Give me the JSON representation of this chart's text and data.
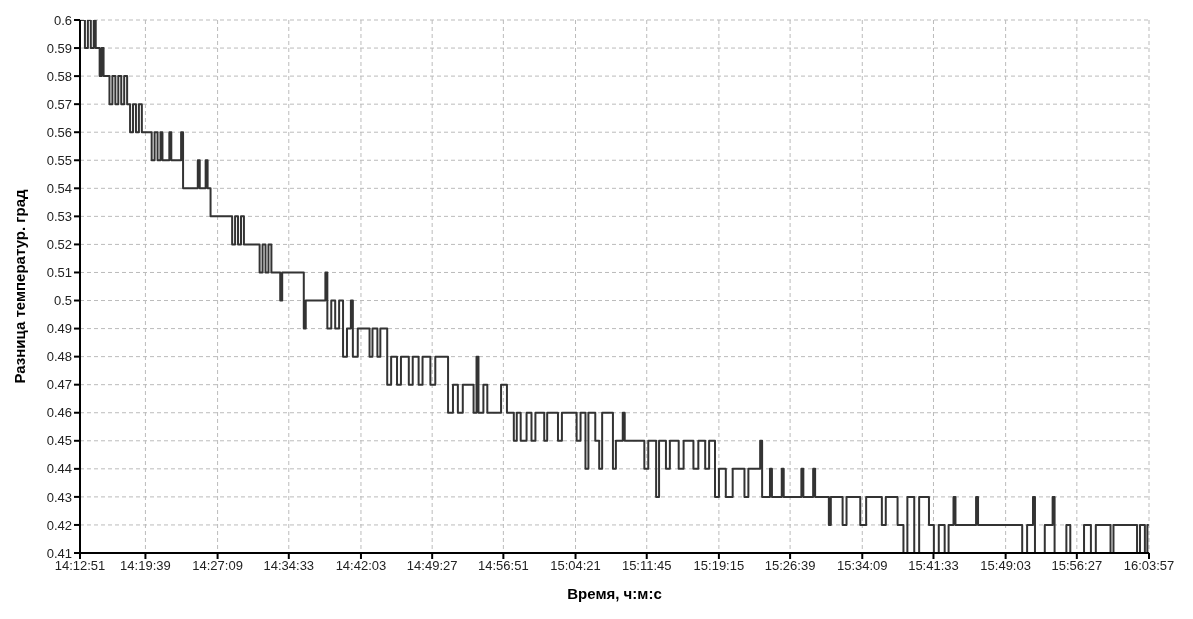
{
  "chart_data": {
    "type": "step",
    "xlabel": "Время, ч:м:с",
    "ylabel": "Разница температур. град",
    "xlim": [
      14.21417,
      16.06583
    ],
    "xticks": [
      {
        "value": 14.21417,
        "label": "14:12:51"
      },
      {
        "value": 14.3275,
        "label": "14:19:39"
      },
      {
        "value": 14.4525,
        "label": "14:27:09"
      },
      {
        "value": 14.57583,
        "label": "14:34:33"
      },
      {
        "value": 14.70083,
        "label": "14:42:03"
      },
      {
        "value": 14.82417,
        "label": "14:49:27"
      },
      {
        "value": 14.9475,
        "label": "14:56:51"
      },
      {
        "value": 15.0725,
        "label": "15:04:21"
      },
      {
        "value": 15.19583,
        "label": "15:11:45"
      },
      {
        "value": 15.32083,
        "label": "15:19:15"
      },
      {
        "value": 15.44417,
        "label": "15:26:39"
      },
      {
        "value": 15.56917,
        "label": "15:34:09"
      },
      {
        "value": 15.6925,
        "label": "15:41:33"
      },
      {
        "value": 15.8175,
        "label": "15:49:03"
      },
      {
        "value": 15.94083,
        "label": "15:56:27"
      },
      {
        "value": 16.06583,
        "label": "16:03:57"
      }
    ],
    "ylim": [
      0.41,
      0.6
    ],
    "yticks": [
      0.41,
      0.42,
      0.43,
      0.44,
      0.45,
      0.46,
      0.47,
      0.48,
      0.49,
      0.5,
      0.51,
      0.52,
      0.53,
      0.54,
      0.55,
      0.56,
      0.57,
      0.58,
      0.59,
      0.6
    ],
    "grid": true,
    "line_style": "dashed",
    "x": [
      14.2142,
      14.2227,
      14.2278,
      14.2329,
      14.238,
      14.2414,
      14.2482,
      14.2516,
      14.255,
      14.2652,
      14.2703,
      14.2754,
      14.2805,
      14.2856,
      14.2907,
      14.2958,
      14.3009,
      14.306,
      14.3111,
      14.3162,
      14.3213,
      14.3383,
      14.3434,
      14.3485,
      14.3536,
      14.357,
      14.3689,
      14.3723,
      14.3893,
      14.3927,
      14.4182,
      14.4216,
      14.4318,
      14.4352,
      14.4403,
      14.4777,
      14.4828,
      14.4879,
      14.493,
      14.4981,
      14.5253,
      14.5304,
      14.5355,
      14.5406,
      14.5457,
      14.561,
      14.5644,
      14.6018,
      14.6052,
      14.6392,
      14.6426,
      14.6494,
      14.6562,
      14.663,
      14.6698,
      14.6766,
      14.6834,
      14.6868,
      14.6953,
      14.7157,
      14.7208,
      14.7293,
      14.7344,
      14.7463,
      14.7531,
      14.7633,
      14.7701,
      14.7837,
      14.7905,
      14.8007,
      14.8075,
      14.8211,
      14.8296,
      14.8517,
      14.8602,
      14.8687,
      14.8772,
      14.8959,
      14.901,
      14.9044,
      14.9129,
      14.9197,
      14.9435,
      14.9537,
      14.9656,
      14.9707,
      14.9775,
      14.9877,
      14.9962,
      15.003,
      15.0183,
      15.0234,
      15.0421,
      15.0489,
      15.0744,
      15.0812,
      15.0897,
      15.0948,
      15.1067,
      15.1135,
      15.1186,
      15.1373,
      15.1424,
      15.1543,
      15.1577,
      15.1917,
      15.1985,
      15.2121,
      15.2172,
      15.2291,
      15.2359,
      15.2512,
      15.2597,
      15.2767,
      15.2852,
      15.2971,
      15.3039,
      15.3141,
      15.3209,
      15.3328,
      15.3447,
      15.3651,
      15.3719,
      15.3923,
      15.3957,
      15.4093,
      15.4127,
      15.4297,
      15.4331,
      15.4637,
      15.4671,
      15.4841,
      15.4875,
      15.5113,
      15.5147,
      15.5351,
      15.5419,
      15.5657,
      15.5759,
      15.6031,
      15.6099,
      15.6303,
      15.6405,
      15.6473,
      15.6592,
      15.6677,
      15.6847,
      15.6932,
      15.7017,
      15.7119,
      15.7187,
      15.7272,
      15.7306,
      15.7663,
      15.7697,
      15.8462,
      15.8547,
      15.8649,
      15.8683,
      15.8853,
      15.8989,
      15.9023,
      15.9227,
      15.9295,
      15.9533,
      15.9652,
      15.9737,
      15.9992,
      16.0043,
      16.0451,
      16.0502,
      16.0587,
      16.063,
      16.0655
    ],
    "series": [
      {
        "color": "#333333",
        "line_style": "solid",
        "values": [
          0.6,
          0.59,
          0.6,
          0.59,
          0.6,
          0.59,
          0.58,
          0.59,
          0.58,
          0.57,
          0.58,
          0.57,
          0.58,
          0.57,
          0.58,
          0.57,
          0.56,
          0.57,
          0.56,
          0.57,
          0.56,
          0.55,
          0.56,
          0.55,
          0.56,
          0.55,
          0.56,
          0.55,
          0.56,
          0.54,
          0.55,
          0.54,
          0.55,
          0.54,
          0.53,
          0.52,
          0.53,
          0.52,
          0.53,
          0.52,
          0.51,
          0.52,
          0.51,
          0.52,
          0.51,
          0.5,
          0.51,
          0.49,
          0.5,
          0.51,
          0.49,
          0.5,
          0.49,
          0.5,
          0.48,
          0.49,
          0.5,
          0.48,
          0.49,
          0.48,
          0.49,
          0.48,
          0.49,
          0.47,
          0.48,
          0.47,
          0.48,
          0.47,
          0.48,
          0.47,
          0.48,
          0.47,
          0.48,
          0.46,
          0.47,
          0.46,
          0.47,
          0.46,
          0.48,
          0.46,
          0.47,
          0.46,
          0.47,
          0.46,
          0.45,
          0.46,
          0.45,
          0.46,
          0.45,
          0.46,
          0.45,
          0.46,
          0.45,
          0.46,
          0.45,
          0.46,
          0.44,
          0.46,
          0.45,
          0.44,
          0.46,
          0.44,
          0.45,
          0.46,
          0.45,
          0.44,
          0.45,
          0.43,
          0.45,
          0.44,
          0.45,
          0.44,
          0.45,
          0.44,
          0.45,
          0.44,
          0.45,
          0.43,
          0.44,
          0.43,
          0.44,
          0.43,
          0.44,
          0.45,
          0.43,
          0.44,
          0.43,
          0.44,
          0.43,
          0.44,
          0.43,
          0.44,
          0.43,
          0.42,
          0.43,
          0.42,
          0.43,
          0.42,
          0.43,
          0.42,
          0.43,
          0.42,
          0.41,
          0.43,
          0.41,
          0.43,
          0.42,
          0.41,
          0.42,
          0.41,
          0.42,
          0.43,
          0.42,
          0.43,
          0.42,
          0.41,
          0.42,
          0.43,
          0.41,
          0.42,
          0.43,
          0.41,
          0.42,
          0.41,
          0.42,
          0.41,
          0.42,
          0.41,
          0.42,
          0.41,
          0.42,
          0.41,
          0.42,
          0.42
        ]
      }
    ]
  }
}
